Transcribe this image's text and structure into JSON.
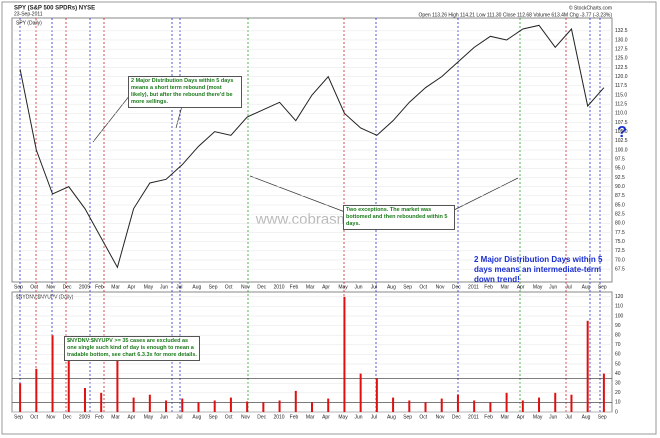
{
  "chart_data": [
    {
      "type": "line",
      "title": "SPY (S&P 500 SPDRs) NYSE",
      "date": "23-Sep-2011",
      "panel_label": "SPY (Daily)",
      "source": "© StockCharts.com",
      "quote": "Open 113.26 High 114.21 Low 111.30 Close 112.68 Volume 613.4M Chg -3.77 (-3.23%)",
      "watermark": "www.cobrasmarketview.com",
      "annotations": [
        "2 Major Distribution Days within 5 days means a short term rebound (most likely), but after the rebound there'd be more sellings.",
        "Two exceptions. The market was bottomed and then rebounded within 5 days.",
        "2 Major Distribution Days within 5 days means an intermediate-term down trend!",
        "?"
      ],
      "categories": [
        "Sep",
        "Oct",
        "Nov",
        "Dec",
        "2009",
        "Feb",
        "Mar",
        "Apr",
        "May",
        "Jun",
        "Jul",
        "Aug",
        "Sep",
        "Oct",
        "Nov",
        "Dec",
        "2010",
        "Feb",
        "Mar",
        "Apr",
        "May",
        "Jun",
        "Jul",
        "Aug",
        "Sep",
        "Oct",
        "Nov",
        "Dec",
        "2011",
        "Feb",
        "Mar",
        "Apr",
        "May",
        "Jun",
        "Jul",
        "Aug",
        "Sep"
      ],
      "series": [
        {
          "name": "SPY",
          "color": "#222222",
          "values": [
            122,
            100,
            88,
            90,
            84,
            76,
            68,
            84,
            91,
            92,
            96,
            101,
            105,
            104,
            109,
            111,
            113,
            108,
            115,
            120,
            110,
            106,
            104,
            108,
            113,
            117,
            120,
            124,
            128,
            131,
            130,
            133,
            134,
            128,
            133,
            112,
            117
          ]
        }
      ],
      "ylim": [
        64,
        136
      ],
      "yticks": [
        67.5,
        {
          "value": 70,
          "label": "70.0"
        },
        72.5,
        {
          "value": 75,
          "label": "75.0"
        },
        77.5,
        {
          "value": 80,
          "label": "80.0"
        },
        82.5,
        {
          "value": 85,
          "label": "85.0"
        },
        87.5,
        {
          "value": 90,
          "label": "90.0"
        },
        92.5,
        {
          "value": 95,
          "label": "95.0"
        },
        97.5,
        {
          "value": 100,
          "label": "100.0"
        },
        102.5,
        {
          "value": 105,
          "label": "105.0"
        },
        107.5,
        {
          "value": 110,
          "label": "110.0"
        },
        112.5,
        {
          "value": 115,
          "label": "115.0"
        },
        117.5,
        {
          "value": 120,
          "label": "120.0"
        },
        122.5,
        {
          "value": 125,
          "label": "125.0"
        },
        127.5,
        {
          "value": 130,
          "label": "130.0"
        },
        132.5
      ],
      "grid": true
    },
    {
      "type": "bar",
      "panel_label": "$NYDNV:$NYUPV (Daily)",
      "annotation": "$NYDNV:$NYUPV >= 35 cases are excluded as one single such kind of day is enough to mean a tradable bottom, see chart 6.3.3x for more details.",
      "categories": [
        "Sep",
        "Oct",
        "Nov",
        "Dec",
        "2009",
        "Feb",
        "Mar",
        "Apr",
        "May",
        "Jun",
        "Jul",
        "Aug",
        "Sep",
        "Oct",
        "Nov",
        "Dec",
        "2010",
        "Feb",
        "Mar",
        "Apr",
        "May",
        "Jun",
        "Jul",
        "Aug",
        "Sep",
        "Oct",
        "Nov",
        "Dec",
        "2011",
        "Feb",
        "Mar",
        "Apr",
        "May",
        "Jun",
        "Jul",
        "Aug",
        "Sep"
      ],
      "color": "#e01010",
      "values": [
        30,
        45,
        80,
        60,
        25,
        20,
        55,
        15,
        18,
        12,
        14,
        10,
        12,
        15,
        11,
        10,
        12,
        22,
        10,
        14,
        120,
        40,
        35,
        15,
        12,
        10,
        14,
        18,
        12,
        10,
        20,
        12,
        15,
        20,
        18,
        95,
        40
      ],
      "thresholds": [
        35,
        10
      ],
      "ylim": [
        0,
        125
      ],
      "yticks": [
        0,
        10,
        20,
        30,
        40,
        50,
        60,
        70,
        80,
        90,
        100,
        110,
        120
      ],
      "grid": true
    }
  ]
}
